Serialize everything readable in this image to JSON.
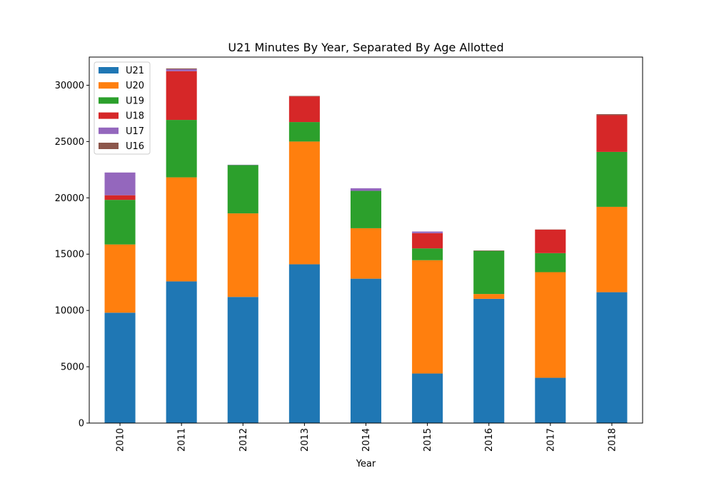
{
  "chart_data": {
    "type": "bar",
    "stacked": true,
    "title": "U21 Minutes By Year, Separated By Age Allotted",
    "xlabel": "Year",
    "ylabel": "",
    "ylim": [
      0,
      32500
    ],
    "yticks": [
      0,
      5000,
      10000,
      15000,
      20000,
      25000,
      30000
    ],
    "ytick_labels": [
      "0",
      "5000",
      "10000",
      "15000",
      "20000",
      "25000",
      "30000"
    ],
    "categories": [
      "2010",
      "2011",
      "2012",
      "2013",
      "2014",
      "2015",
      "2016",
      "2017",
      "2018"
    ],
    "legend_position": "top-left",
    "grid": false,
    "series": [
      {
        "name": "U21",
        "color": "#1f77b4",
        "values": [
          9800,
          12580,
          11200,
          14100,
          12820,
          4400,
          11030,
          4020,
          11620
        ]
      },
      {
        "name": "U20",
        "color": "#ff7f0e",
        "values": [
          6060,
          9240,
          7420,
          10900,
          4480,
          10060,
          430,
          9380,
          7580
        ]
      },
      {
        "name": "U19",
        "color": "#2ca02c",
        "values": [
          3960,
          5100,
          4290,
          1730,
          3320,
          1050,
          3830,
          1690,
          4880
        ]
      },
      {
        "name": "U18",
        "color": "#d62728",
        "values": [
          410,
          4330,
          0,
          2280,
          0,
          1350,
          0,
          2080,
          3260
        ]
      },
      {
        "name": "U17",
        "color": "#9467bd",
        "values": [
          2020,
          170,
          30,
          0,
          230,
          150,
          0,
          0,
          0
        ]
      },
      {
        "name": "U16",
        "color": "#8c564b",
        "values": [
          0,
          70,
          0,
          40,
          0,
          0,
          40,
          20,
          90
        ]
      }
    ]
  }
}
